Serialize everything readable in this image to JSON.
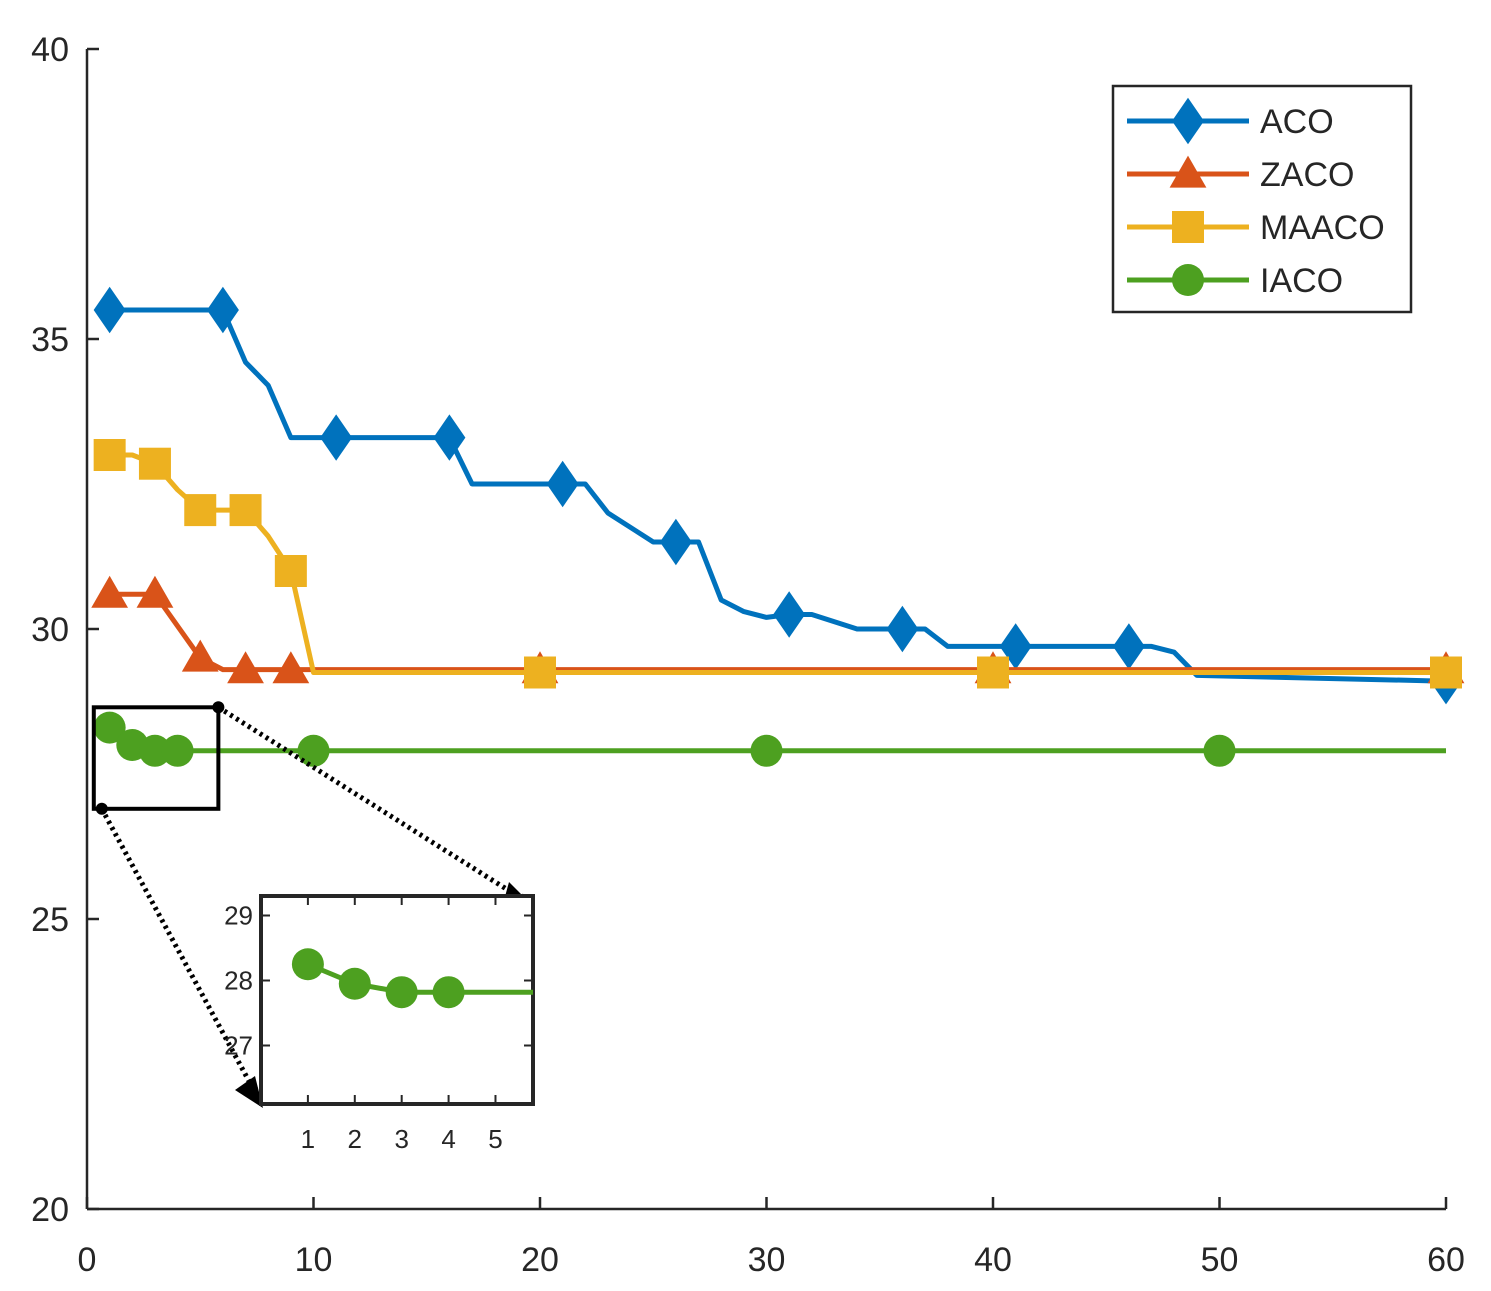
{
  "chart_data": {
    "type": "line",
    "title": "",
    "xlabel": "",
    "ylabel": "",
    "xlim": [
      0,
      60
    ],
    "ylim": [
      20,
      40
    ],
    "xticks": [
      "0",
      "10",
      "20",
      "30",
      "40",
      "50",
      "60"
    ],
    "yticks": [
      "20",
      "25",
      "30",
      "35",
      "40"
    ],
    "grid": false,
    "legend_position": "top-right",
    "series": [
      {
        "name": "ACO",
        "color": "#0072BD",
        "marker": "diamond",
        "x": [
          1,
          6,
          7,
          8,
          9,
          11,
          16,
          17,
          21,
          22,
          23,
          25,
          26,
          27,
          28,
          29,
          30,
          31,
          32,
          34,
          36,
          37,
          38,
          41,
          46,
          47,
          48,
          49,
          60
        ],
        "y": [
          35.5,
          35.5,
          34.6,
          34.2,
          33.3,
          33.3,
          33.3,
          32.5,
          32.5,
          32.5,
          32.0,
          31.5,
          31.5,
          31.5,
          30.5,
          30.3,
          30.2,
          30.25,
          30.25,
          30.0,
          30.0,
          30.0,
          29.7,
          29.7,
          29.7,
          29.7,
          29.6,
          29.2,
          29.1
        ],
        "markers_at": [
          1,
          6,
          11,
          16,
          21,
          26,
          31,
          36,
          41,
          46,
          60
        ]
      },
      {
        "name": "ZACO",
        "color": "#D95319",
        "marker": "triangle",
        "x": [
          1,
          3,
          5,
          6,
          7,
          9,
          20,
          40,
          60
        ],
        "y": [
          30.6,
          30.6,
          29.5,
          29.3,
          29.3,
          29.3,
          29.3,
          29.3,
          29.3
        ],
        "markers_at": [
          1,
          3,
          5,
          7,
          9,
          20,
          40,
          60
        ]
      },
      {
        "name": "MAACO",
        "color": "#EDB120",
        "marker": "square",
        "x": [
          1,
          2,
          3,
          4,
          5,
          7,
          8,
          9,
          10,
          20,
          40,
          60
        ],
        "y": [
          33.0,
          33.0,
          32.85,
          32.4,
          32.05,
          32.05,
          31.6,
          31.0,
          29.25,
          29.25,
          29.25,
          29.25
        ],
        "markers_at": [
          1,
          3,
          5,
          7,
          9,
          20,
          40,
          60
        ]
      },
      {
        "name": "IACO",
        "color": "#4DA020",
        "marker": "circle",
        "x": [
          1,
          2,
          3,
          4,
          10,
          30,
          50,
          60
        ],
        "y": [
          28.3,
          28.0,
          27.9,
          27.9,
          27.9,
          27.9,
          27.9,
          27.9
        ],
        "markers_at": [
          1,
          2,
          3,
          4,
          10,
          30,
          50
        ]
      }
    ],
    "inset": {
      "xlim": [
        0,
        5.8
      ],
      "ylim": [
        26.1,
        29.3
      ],
      "xticks": [
        "1",
        "2",
        "3",
        "4",
        "5"
      ],
      "yticks": [
        "27",
        "28",
        "29"
      ],
      "series": {
        "name": "IACO",
        "x": [
          1,
          2,
          3,
          4,
          5.8
        ],
        "y": [
          28.25,
          27.95,
          27.82,
          27.82,
          27.82
        ],
        "markers_at": [
          1,
          2,
          3,
          4
        ]
      }
    }
  }
}
